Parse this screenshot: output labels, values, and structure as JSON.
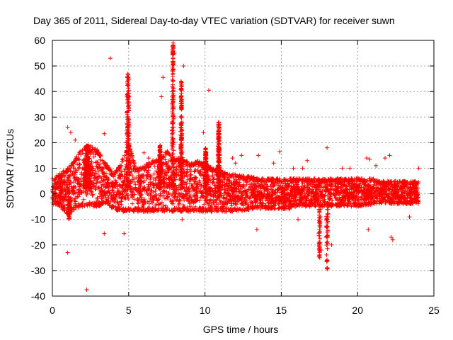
{
  "chart_data": {
    "type": "scatter",
    "title": "Day 365 of 2011, Sidereal Day-to-day VTEC variation (SDTVAR) for receiver suwn",
    "xlabel": "GPS time / hours",
    "ylabel": "SDTVAR / TECUs",
    "xlim": [
      0,
      25
    ],
    "ylim": [
      -40,
      60
    ],
    "x_ticks": [
      0,
      5,
      10,
      15,
      20,
      25
    ],
    "y_ticks": [
      -40,
      -30,
      -20,
      -10,
      0,
      10,
      20,
      30,
      40,
      50,
      60
    ],
    "x_tick_labels": [
      "0",
      "5",
      "10",
      "15",
      "20",
      "25"
    ],
    "y_tick_labels": [
      "-40",
      "-30",
      "-20",
      "-10",
      "0",
      "10",
      "20",
      "30",
      "40",
      "50",
      "60"
    ],
    "grid": true,
    "marker": "+",
    "color": "#ff0000",
    "envelope": {
      "x": [
        0,
        0.5,
        1,
        1.5,
        2,
        2.5,
        3,
        3.5,
        4,
        4.5,
        5,
        5.5,
        6,
        6.5,
        7,
        7.5,
        8,
        8.5,
        9,
        9.5,
        10,
        10.5,
        11,
        11.5,
        12,
        12.5,
        13,
        13.5,
        14,
        14.5,
        15,
        15.5,
        16,
        16.5,
        17,
        17.5,
        18,
        18.5,
        19,
        19.5,
        20,
        20.5,
        21,
        21.5,
        22,
        22.5,
        23,
        23.5,
        24
      ],
      "upper": [
        6,
        8,
        10,
        14,
        18,
        19,
        17,
        12,
        8,
        12,
        20,
        10,
        11,
        13,
        14,
        17,
        14,
        14,
        12,
        13,
        12,
        10,
        9,
        8,
        8,
        7,
        7,
        6,
        6,
        6,
        6,
        6,
        6,
        6,
        6,
        6,
        6,
        6,
        6,
        6,
        6,
        6,
        6,
        5,
        5,
        5,
        5,
        5,
        5
      ],
      "lower": [
        -4,
        -5,
        -8,
        -6,
        -5,
        -5,
        -5,
        -4,
        -6,
        -7,
        -7,
        -7,
        -7,
        -7,
        -7,
        -7,
        -7,
        -7,
        -7,
        -7,
        -7,
        -7,
        -7,
        -7,
        -7,
        -7,
        -6,
        -6,
        -6,
        -6,
        -6,
        -6,
        -5,
        -5,
        -5,
        -5,
        -5,
        -5,
        -5,
        -5,
        -5,
        -5,
        -4,
        -4,
        -4,
        -4,
        -4,
        -4,
        -4
      ]
    },
    "peaks": [
      {
        "x": 2.3,
        "y": 19,
        "width": 0.6
      },
      {
        "x": 4.95,
        "y": 47,
        "width": 0.25
      },
      {
        "x": 7.05,
        "y": 19,
        "width": 0.15
      },
      {
        "x": 7.9,
        "y": 59,
        "width": 0.18
      },
      {
        "x": 8.45,
        "y": 44,
        "width": 0.18
      },
      {
        "x": 10.05,
        "y": 18,
        "width": 0.15
      },
      {
        "x": 10.9,
        "y": 28,
        "width": 0.18
      }
    ],
    "troughs": [
      {
        "x": 1.1,
        "y": -10,
        "width": 0.15
      },
      {
        "x": 17.5,
        "y": -25,
        "width": 0.15
      },
      {
        "x": 18.0,
        "y": -30,
        "width": 0.15
      }
    ],
    "outliers": [
      {
        "x": 3.8,
        "y": 53
      },
      {
        "x": 2.25,
        "y": -37.5
      },
      {
        "x": 1.0,
        "y": -23
      },
      {
        "x": 3.4,
        "y": -15.5
      },
      {
        "x": 4.7,
        "y": -15.5
      },
      {
        "x": 10.25,
        "y": 40.5
      },
      {
        "x": 7.25,
        "y": 45.5
      },
      {
        "x": 8.6,
        "y": 50
      },
      {
        "x": 7.15,
        "y": 38
      },
      {
        "x": 8.0,
        "y": 55
      },
      {
        "x": 8.5,
        "y": -10
      },
      {
        "x": 9.9,
        "y": 24
      },
      {
        "x": 1.0,
        "y": 26
      },
      {
        "x": 1.2,
        "y": 24
      },
      {
        "x": 1.5,
        "y": 21
      },
      {
        "x": 3.4,
        "y": 23.5
      },
      {
        "x": 6.0,
        "y": 16
      },
      {
        "x": 6.3,
        "y": 14
      },
      {
        "x": 6.6,
        "y": 12
      },
      {
        "x": 13.5,
        "y": 15
      },
      {
        "x": 13.4,
        "y": -14
      },
      {
        "x": 14.9,
        "y": 16.5
      },
      {
        "x": 14.5,
        "y": 12
      },
      {
        "x": 15.8,
        "y": 10
      },
      {
        "x": 16.4,
        "y": 10
      },
      {
        "x": 16.7,
        "y": 13
      },
      {
        "x": 16.1,
        "y": -10
      },
      {
        "x": 18.0,
        "y": 18
      },
      {
        "x": 17.6,
        "y": -22
      },
      {
        "x": 18.3,
        "y": -20
      },
      {
        "x": 19.0,
        "y": 10
      },
      {
        "x": 19.5,
        "y": 10
      },
      {
        "x": 20.6,
        "y": 14
      },
      {
        "x": 20.8,
        "y": 13.5
      },
      {
        "x": 21.2,
        "y": 11
      },
      {
        "x": 21.8,
        "y": 14
      },
      {
        "x": 22.1,
        "y": 15
      },
      {
        "x": 22.2,
        "y": -17
      },
      {
        "x": 22.3,
        "y": -18
      },
      {
        "x": 20.7,
        "y": -14
      },
      {
        "x": 24.0,
        "y": 10
      },
      {
        "x": 23.4,
        "y": -9
      },
      {
        "x": 12.4,
        "y": 15
      },
      {
        "x": 11.8,
        "y": 14
      },
      {
        "x": 12.0,
        "y": 12
      }
    ]
  }
}
